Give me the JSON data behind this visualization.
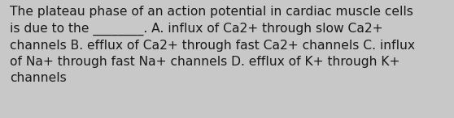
{
  "lines": [
    "The plateau phase of an action potential in cardiac muscle cells",
    "is due to the ________. A. influx of Ca2+ through slow Ca2+",
    "channels B. efflux of Ca2+ through fast Ca2+ channels C. influx",
    "of Na+ through fast Na+ channels D. efflux of K+ through K+",
    "channels"
  ],
  "background_color": "#c8c8c8",
  "text_color": "#1a1a1a",
  "font_size": 11.2,
  "fig_width": 5.58,
  "fig_height": 1.46,
  "dpi": 100
}
